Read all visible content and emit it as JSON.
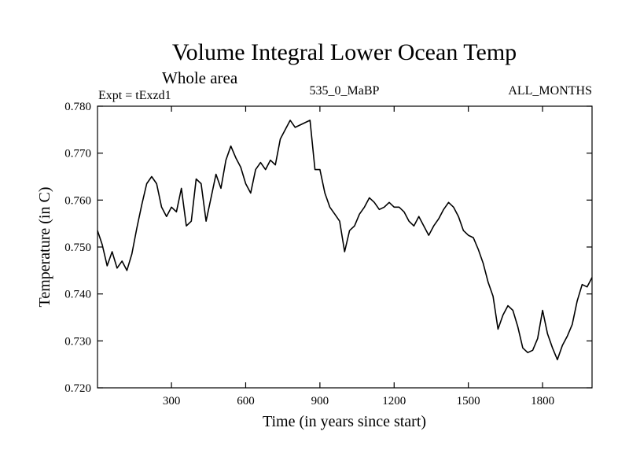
{
  "chart_data": {
    "type": "line",
    "title": "Volume Integral Lower Ocean Temp",
    "subtitle": "Whole area",
    "left_label": "Expt = tExzd1",
    "center_label": "535_0_MaBP",
    "right_label": "ALL_MONTHS",
    "xlabel": "Time (in years since start)",
    "ylabel": "Temperature (in C)",
    "xlim": [
      1,
      2000
    ],
    "ylim": [
      0.72,
      0.78
    ],
    "x_ticks": [
      300,
      600,
      900,
      1200,
      1500,
      1800
    ],
    "x_tick_labels": [
      "300",
      "600",
      "900",
      "1200",
      "1500",
      "1800"
    ],
    "y_ticks": [
      0.72,
      0.73,
      0.74,
      0.75,
      0.76,
      0.77,
      0.78
    ],
    "y_tick_labels": [
      "0.720",
      "0.730",
      "0.740",
      "0.750",
      "0.760",
      "0.770",
      "0.780"
    ],
    "grid": false,
    "series": [
      {
        "name": "Volume Integral Lower Ocean Temp",
        "color": "#000000",
        "x": [
          1,
          20,
          40,
          60,
          80,
          100,
          120,
          140,
          160,
          180,
          200,
          220,
          240,
          260,
          280,
          300,
          320,
          340,
          360,
          380,
          400,
          420,
          440,
          460,
          480,
          500,
          520,
          540,
          560,
          580,
          600,
          620,
          640,
          660,
          680,
          700,
          720,
          740,
          760,
          780,
          800,
          820,
          840,
          860,
          880,
          900,
          920,
          940,
          960,
          980,
          1000,
          1020,
          1040,
          1060,
          1080,
          1100,
          1120,
          1140,
          1160,
          1180,
          1200,
          1220,
          1240,
          1260,
          1280,
          1300,
          1320,
          1340,
          1360,
          1380,
          1400,
          1420,
          1440,
          1460,
          1480,
          1500,
          1520,
          1540,
          1560,
          1580,
          1600,
          1620,
          1640,
          1660,
          1680,
          1700,
          1720,
          1740,
          1760,
          1780,
          1800,
          1820,
          1840,
          1860,
          1880,
          1900,
          1920,
          1940,
          1960,
          1980,
          2000
        ],
        "values": [
          0.7535,
          0.7505,
          0.746,
          0.749,
          0.7455,
          0.747,
          0.745,
          0.7485,
          0.754,
          0.759,
          0.7635,
          0.765,
          0.7635,
          0.7585,
          0.7565,
          0.7585,
          0.7575,
          0.7625,
          0.7545,
          0.7555,
          0.7645,
          0.7635,
          0.7555,
          0.7605,
          0.7655,
          0.7625,
          0.7685,
          0.7715,
          0.769,
          0.767,
          0.7635,
          0.7615,
          0.7665,
          0.768,
          0.7665,
          0.7685,
          0.7675,
          0.773,
          0.775,
          0.777,
          0.7755,
          0.776,
          0.7765,
          0.777,
          0.7665,
          0.7665,
          0.7615,
          0.7585,
          0.757,
          0.7555,
          0.749,
          0.7535,
          0.7545,
          0.757,
          0.7585,
          0.7605,
          0.7595,
          0.758,
          0.7585,
          0.7595,
          0.7585,
          0.7585,
          0.7575,
          0.7555,
          0.7545,
          0.7565,
          0.7545,
          0.7525,
          0.7545,
          0.756,
          0.758,
          0.7595,
          0.7585,
          0.7565,
          0.7535,
          0.7525,
          0.752,
          0.7495,
          0.7465,
          0.7425,
          0.7395,
          0.7325,
          0.7355,
          0.7375,
          0.7365,
          0.733,
          0.7285,
          0.7275,
          0.728,
          0.7305,
          0.7365,
          0.7315,
          0.7285,
          0.726,
          0.729,
          0.731,
          0.7335,
          0.7385,
          0.742,
          0.7415,
          0.7435
        ]
      }
    ]
  }
}
